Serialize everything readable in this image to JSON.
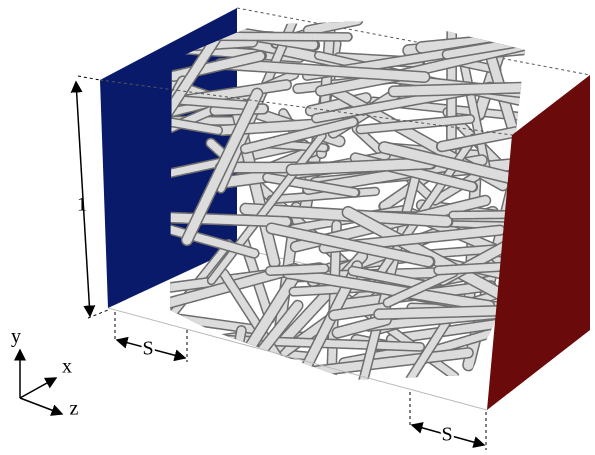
{
  "dimension_labels": {
    "height": "1",
    "gap_left": "S",
    "gap_right": "S"
  },
  "axes": {
    "y": "y",
    "x": "x",
    "z": "z"
  }
}
